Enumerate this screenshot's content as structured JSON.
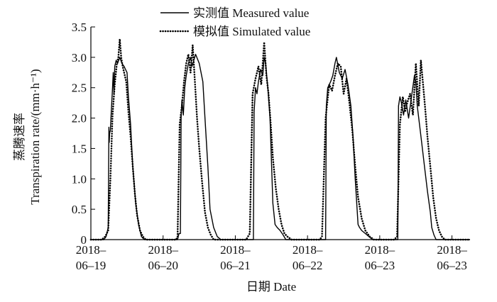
{
  "chart_data": {
    "type": "line",
    "title": "",
    "xlabel": "日期 Date",
    "ylabel_cn": "蒸腾速率",
    "ylabel_en": "Transpiration rate/(mm·h⁻¹)",
    "ylim": [
      0,
      3.5
    ],
    "yticks": [
      0,
      0.5,
      1.0,
      1.5,
      2.0,
      2.5,
      3.0,
      3.5
    ],
    "ytick_labels": [
      "0",
      "0.5",
      "1.0",
      "1.5",
      "2.0",
      "2.5",
      "3.0",
      "3.5"
    ],
    "xlim": [
      0,
      5.25
    ],
    "x_unit": "days from first tick",
    "xtick_labels": [
      {
        "line1": "2018–",
        "line2": "06–19"
      },
      {
        "line1": "2018–",
        "line2": "06–20"
      },
      {
        "line1": "2018–",
        "line2": "06–21"
      },
      {
        "line1": "2018–",
        "line2": "06–22"
      },
      {
        "line1": "2018–",
        "line2": "06–23"
      },
      {
        "line1": "2018–",
        "line2": "06–23"
      }
    ],
    "legend_position": "top-center",
    "series": [
      {
        "name": "实测值 Measured value",
        "style": "solid",
        "color": "#000000",
        "x": [
          0.0,
          0.18,
          0.21,
          0.22,
          0.23,
          0.24,
          0.25,
          0.255,
          0.26,
          0.27,
          0.28,
          0.3,
          0.31,
          0.32,
          0.33,
          0.35,
          0.37,
          0.4,
          0.43,
          0.46,
          0.48,
          0.5,
          0.52,
          0.55,
          0.58,
          0.62,
          0.66,
          0.7,
          0.74,
          0.78,
          0.85,
          1.0,
          1.2,
          1.22,
          1.23,
          1.24,
          1.25,
          1.26,
          1.28,
          1.3,
          1.32,
          1.35,
          1.38,
          1.4,
          1.45,
          1.5,
          1.55,
          1.58,
          1.62,
          1.65,
          1.7,
          1.75,
          1.8,
          1.9,
          2.0,
          2.15,
          2.22,
          2.25,
          2.26,
          2.28,
          2.3,
          2.32,
          2.35,
          2.38,
          2.4,
          2.42,
          2.45,
          2.48,
          2.5,
          2.52,
          2.55,
          2.58,
          2.62,
          2.66,
          2.7,
          2.72,
          2.74,
          2.78,
          2.85,
          3.0,
          3.15,
          3.25,
          3.26,
          3.28,
          3.3,
          3.32,
          3.35,
          3.38,
          3.4,
          3.44,
          3.48,
          3.52,
          3.56,
          3.6,
          3.63,
          3.66,
          3.7,
          3.72,
          3.75,
          3.8,
          3.85,
          3.9,
          4.0,
          4.18,
          4.25,
          4.26,
          4.28,
          4.3,
          4.33,
          4.36,
          4.4,
          4.44,
          4.48,
          4.5,
          4.52,
          4.55,
          4.58,
          4.62,
          4.66,
          4.7,
          4.72,
          4.75,
          4.78,
          4.8,
          4.83,
          4.86,
          4.9,
          5.0,
          5.25
        ],
        "y": [
          0.0,
          0.0,
          0.05,
          0.1,
          0.15,
          0.2,
          1.85,
          1.6,
          1.75,
          1.8,
          2.05,
          2.5,
          2.75,
          2.4,
          2.85,
          2.95,
          2.9,
          3.0,
          2.9,
          2.85,
          2.8,
          2.75,
          2.35,
          1.9,
          1.2,
          0.6,
          0.25,
          0.05,
          0.0,
          0.0,
          0.0,
          0.0,
          0.0,
          0.1,
          0.1,
          0.1,
          2.0,
          2.3,
          2.05,
          2.5,
          2.7,
          2.9,
          3.0,
          2.85,
          3.05,
          2.9,
          2.6,
          2.0,
          1.2,
          0.5,
          0.2,
          0.05,
          0.0,
          0.0,
          0.0,
          0.0,
          0.0,
          0.0,
          2.1,
          2.5,
          2.4,
          2.6,
          2.8,
          2.7,
          3.0,
          2.9,
          2.5,
          2.0,
          1.3,
          0.6,
          0.25,
          0.2,
          0.15,
          0.08,
          0.0,
          0.0,
          0.0,
          0.0,
          0.0,
          0.0,
          0.0,
          0.0,
          2.2,
          2.5,
          2.55,
          2.6,
          2.7,
          2.9,
          3.0,
          2.75,
          2.65,
          2.8,
          2.55,
          2.2,
          1.7,
          1.0,
          0.25,
          0.2,
          0.15,
          0.1,
          0.05,
          0.0,
          0.0,
          0.0,
          0.0,
          2.2,
          2.35,
          2.25,
          2.05,
          2.3,
          2.0,
          2.35,
          2.7,
          2.6,
          2.2,
          1.9,
          1.6,
          1.2,
          0.8,
          0.45,
          0.2,
          0.08,
          0.0,
          0.0,
          0.0,
          0.0,
          0.0,
          0.0,
          0.0
        ]
      },
      {
        "name": "模拟值 Simulated value",
        "style": "dotted",
        "color": "#000000",
        "x": [
          0.0,
          0.15,
          0.2,
          0.24,
          0.27,
          0.3,
          0.33,
          0.36,
          0.38,
          0.4,
          0.42,
          0.44,
          0.46,
          0.49,
          0.52,
          0.55,
          0.58,
          0.61,
          0.64,
          0.68,
          0.72,
          0.76,
          0.82,
          1.0,
          1.18,
          1.2,
          1.23,
          1.26,
          1.29,
          1.32,
          1.35,
          1.38,
          1.41,
          1.44,
          1.47,
          1.5,
          1.54,
          1.58,
          1.62,
          1.66,
          1.7,
          1.76,
          1.82,
          2.0,
          2.15,
          2.2,
          2.24,
          2.28,
          2.32,
          2.36,
          2.4,
          2.43,
          2.46,
          2.49,
          2.52,
          2.56,
          2.6,
          2.64,
          2.68,
          2.72,
          2.78,
          2.85,
          3.0,
          3.17,
          3.2,
          3.25,
          3.3,
          3.34,
          3.38,
          3.42,
          3.46,
          3.5,
          3.54,
          3.58,
          3.62,
          3.66,
          3.7,
          3.75,
          3.8,
          3.86,
          3.92,
          4.0,
          4.2,
          4.24,
          4.28,
          4.32,
          4.35,
          4.38,
          4.42,
          4.46,
          4.5,
          4.54,
          4.57,
          4.6,
          4.63,
          4.66,
          4.7,
          4.74,
          4.78,
          4.82,
          4.86,
          4.9,
          5.0,
          5.25
        ],
        "y": [
          0.0,
          0.0,
          0.05,
          0.15,
          1.0,
          2.05,
          2.55,
          2.9,
          3.0,
          3.3,
          3.0,
          2.85,
          2.75,
          2.6,
          2.1,
          1.7,
          1.2,
          0.75,
          0.4,
          0.15,
          0.05,
          0.0,
          0.0,
          0.0,
          0.0,
          0.05,
          1.9,
          2.2,
          2.6,
          2.9,
          3.05,
          2.75,
          3.2,
          2.6,
          2.0,
          1.5,
          0.95,
          0.45,
          0.2,
          0.08,
          0.0,
          0.0,
          0.0,
          0.0,
          0.0,
          0.1,
          2.4,
          2.65,
          2.85,
          2.55,
          3.25,
          2.7,
          2.4,
          1.9,
          1.35,
          0.85,
          0.5,
          0.25,
          0.1,
          0.05,
          0.0,
          0.0,
          0.0,
          0.0,
          0.05,
          2.0,
          2.55,
          2.45,
          2.7,
          2.9,
          2.85,
          2.4,
          2.65,
          2.25,
          1.8,
          1.2,
          0.7,
          0.35,
          0.15,
          0.05,
          0.0,
          0.0,
          0.0,
          0.05,
          1.9,
          2.35,
          2.1,
          2.25,
          2.4,
          2.05,
          2.9,
          2.2,
          2.95,
          2.55,
          2.15,
          1.7,
          1.2,
          0.7,
          0.35,
          0.15,
          0.05,
          0.0,
          0.0,
          0.0
        ]
      }
    ]
  }
}
